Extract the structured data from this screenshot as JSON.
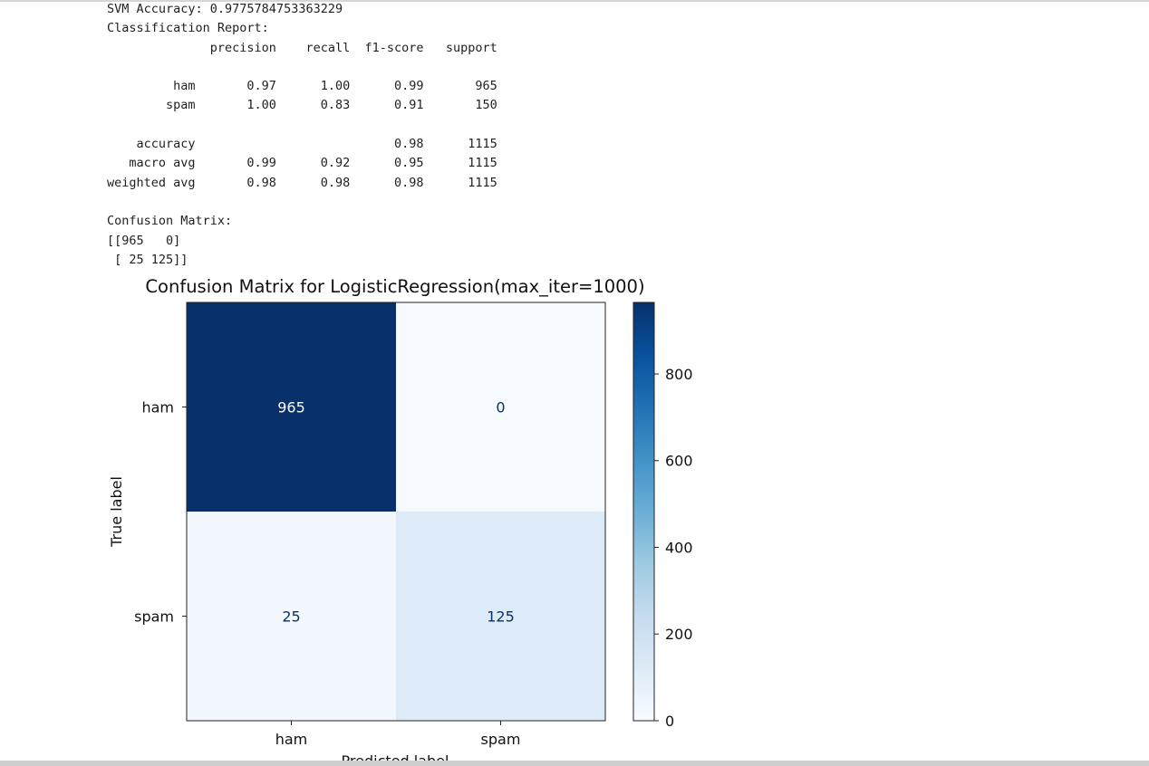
{
  "console": {
    "lines": [
      "SVM Accuracy: 0.9775784753363229",
      "Classification Report:",
      "              precision    recall  f1-score   support",
      "",
      "         ham       0.97      1.00      0.99       965",
      "        spam       1.00      0.83      0.91       150",
      "",
      "    accuracy                           0.98      1115",
      "   macro avg       0.99      0.92      0.95      1115",
      "weighted avg       0.98      0.98      0.98      1115",
      "",
      "Confusion Matrix:",
      "[[965   0]",
      " [ 25 125]]"
    ]
  },
  "chart_data": {
    "type": "heatmap",
    "title": "Confusion Matrix for LogisticRegression(max_iter=1000)",
    "xlabel": "Predicted label",
    "ylabel": "True label",
    "x_categories": [
      "ham",
      "spam"
    ],
    "y_categories": [
      "ham",
      "spam"
    ],
    "matrix": [
      [
        965,
        0
      ],
      [
        25,
        125
      ]
    ],
    "colormap": "Blues",
    "colorbar": {
      "range": [
        0,
        965
      ],
      "ticks": [
        0,
        200,
        400,
        600,
        800
      ]
    },
    "colors": {
      "low": "#f7fbff",
      "high": "#08306b",
      "text_on_dark": "#f7fbff",
      "text_on_light": "#08306b"
    }
  }
}
